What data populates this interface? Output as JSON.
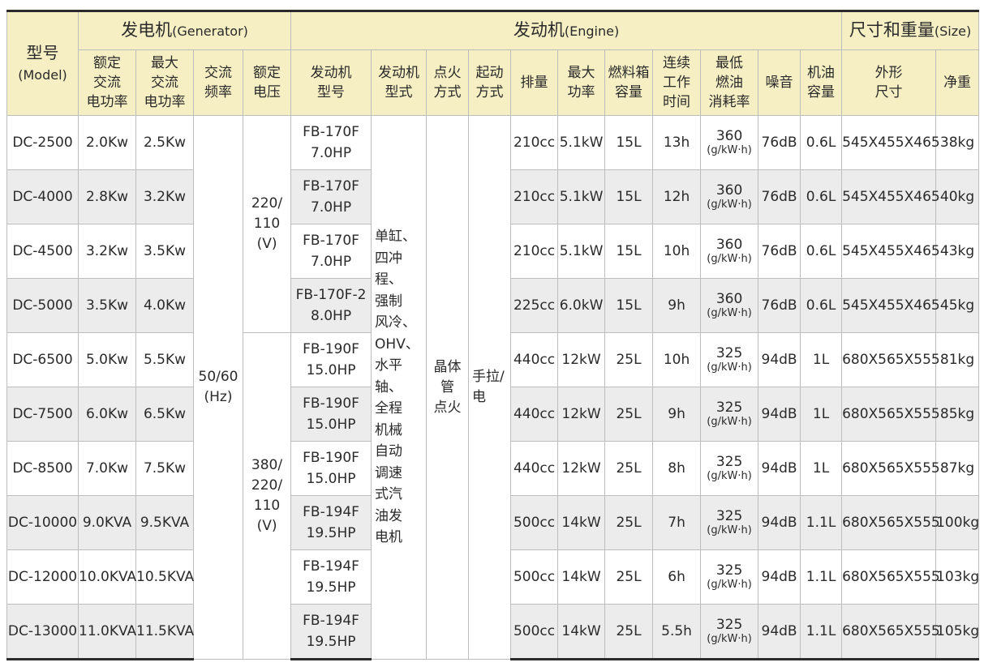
{
  "header": {
    "model": {
      "zh": "型号",
      "en": "(Model)"
    },
    "generator": {
      "zh": "发电机",
      "en": "(Generator)"
    },
    "engine": {
      "zh": "发动机",
      "en": "(Engine)"
    },
    "size": {
      "zh": "尺寸和重量",
      "en": "(Size)"
    },
    "columns": {
      "rated_power": [
        "额定",
        "交流",
        "电功率"
      ],
      "max_power": [
        "最大",
        "交流",
        "电功率"
      ],
      "ac_freq": [
        "交流",
        "频率"
      ],
      "rated_voltage": [
        "额定",
        "电压"
      ],
      "engine_model": [
        "发动机",
        "型号"
      ],
      "engine_type": [
        "发动机",
        "型式"
      ],
      "ignition": [
        "点火",
        "方式"
      ],
      "start": [
        "起动",
        "方式"
      ],
      "displacement": [
        "排量"
      ],
      "max_output": [
        "最大",
        "功率"
      ],
      "tank": [
        "燃料箱",
        "容量"
      ],
      "runtime": [
        "连续",
        "工作",
        "时间"
      ],
      "consumption": [
        "最低",
        "燃油",
        "消耗率"
      ],
      "noise": [
        "噪音"
      ],
      "oil": [
        "机油",
        "容量"
      ],
      "dimensions": [
        "外形",
        "尺寸"
      ],
      "net_weight": [
        "净重"
      ]
    }
  },
  "shared": {
    "frequency": [
      "50/60",
      "(Hz)"
    ],
    "voltage_a": [
      "220/",
      "110",
      "(V)"
    ],
    "voltage_b": [
      "380/",
      "220/",
      "110",
      "(V)"
    ],
    "engine_type": [
      "单缸、",
      "四冲程、",
      "强制",
      "风冷、",
      "OHV、",
      "水平轴、",
      "全程",
      "机械",
      "自动",
      "调速",
      "式汽",
      "油发",
      "电机"
    ],
    "ignition": [
      "晶体",
      "管",
      "点火"
    ],
    "start": [
      "手拉/",
      "电"
    ]
  },
  "rows": [
    {
      "model": "DC-2500",
      "rated": "2.0Kw",
      "max": "2.5Kw",
      "engine": [
        "FB-170F",
        "7.0HP"
      ],
      "disp": "210cc",
      "power": "5.1kW",
      "tank": "15L",
      "time": "13h",
      "fuel": "360",
      "fuel_unit": "(g/kW·h)",
      "noise": "76dB",
      "oil": "0.6L",
      "dims": "545X455X465",
      "weight": "38kg"
    },
    {
      "model": "DC-4000",
      "rated": "2.8Kw",
      "max": "3.2Kw",
      "engine": [
        "FB-170F",
        "7.0HP"
      ],
      "disp": "210cc",
      "power": "5.1kW",
      "tank": "15L",
      "time": "12h",
      "fuel": "360",
      "fuel_unit": "(g/kW·h)",
      "noise": "76dB",
      "oil": "0.6L",
      "dims": "545X455X465",
      "weight": "40kg"
    },
    {
      "model": "DC-4500",
      "rated": "3.2Kw",
      "max": "3.5Kw",
      "engine": [
        "FB-170F",
        "7.0HP"
      ],
      "disp": "210cc",
      "power": "5.1kW",
      "tank": "15L",
      "time": "10h",
      "fuel": "360",
      "fuel_unit": "(g/kW·h)",
      "noise": "76dB",
      "oil": "0.6L",
      "dims": "545X455X465",
      "weight": "43kg"
    },
    {
      "model": "DC-5000",
      "rated": "3.5Kw",
      "max": "4.0Kw",
      "engine": [
        "FB-170F-2",
        "8.0HP"
      ],
      "disp": "225cc",
      "power": "6.0kW",
      "tank": "15L",
      "time": "9h",
      "fuel": "360",
      "fuel_unit": "(g/kW·h)",
      "noise": "76dB",
      "oil": "0.6L",
      "dims": "545X455X465",
      "weight": "45kg"
    },
    {
      "model": "DC-6500",
      "rated": "5.0Kw",
      "max": "5.5Kw",
      "engine": [
        "FB-190F",
        "15.0HP"
      ],
      "disp": "440cc",
      "power": "12kW",
      "tank": "25L",
      "time": "10h",
      "fuel": "325",
      "fuel_unit": "(g/kW·h)",
      "noise": "94dB",
      "oil": "1L",
      "dims": "680X565X555",
      "weight": "81kg"
    },
    {
      "model": "DC-7500",
      "rated": "6.0Kw",
      "max": "6.5Kw",
      "engine": [
        "FB-190F",
        "15.0HP"
      ],
      "disp": "440cc",
      "power": "12kW",
      "tank": "25L",
      "time": "9h",
      "fuel": "325",
      "fuel_unit": "(g/kW·h)",
      "noise": "94dB",
      "oil": "1L",
      "dims": "680X565X555",
      "weight": "85kg"
    },
    {
      "model": "DC-8500",
      "rated": "7.0Kw",
      "max": "7.5Kw",
      "engine": [
        "FB-190F",
        "15.0HP"
      ],
      "disp": "440cc",
      "power": "12kW",
      "tank": "25L",
      "time": "8h",
      "fuel": "325",
      "fuel_unit": "(g/kW·h)",
      "noise": "94dB",
      "oil": "1L",
      "dims": "680X565X555",
      "weight": "87kg"
    },
    {
      "model": "DC-10000",
      "rated": "9.0KVA",
      "max": "9.5KVA",
      "engine": [
        "FB-194F",
        "19.5HP"
      ],
      "disp": "500cc",
      "power": "14kW",
      "tank": "25L",
      "time": "7h",
      "fuel": "325",
      "fuel_unit": "(g/kW·h)",
      "noise": "94dB",
      "oil": "1.1L",
      "dims": "680X565X555",
      "weight": "100kg"
    },
    {
      "model": "DC-12000",
      "rated": "10.0KVA",
      "max": "10.5KVA",
      "engine": [
        "FB-194F",
        "19.5HP"
      ],
      "disp": "500cc",
      "power": "14kW",
      "tank": "25L",
      "time": "6h",
      "fuel": "325",
      "fuel_unit": "(g/kW·h)",
      "noise": "94dB",
      "oil": "1.1L",
      "dims": "680X565X555",
      "weight": "103kg"
    },
    {
      "model": "DC-13000",
      "rated": "11.0KVA",
      "max": "11.5KVA",
      "engine": [
        "FB-194F",
        "19.5HP"
      ],
      "disp": "500cc",
      "power": "14kW",
      "tank": "25L",
      "time": "5.5h",
      "fuel": "325",
      "fuel_unit": "(g/kW·h)",
      "noise": "94dB",
      "oil": "1.1L",
      "dims": "680X565X555",
      "weight": "105kg"
    }
  ]
}
